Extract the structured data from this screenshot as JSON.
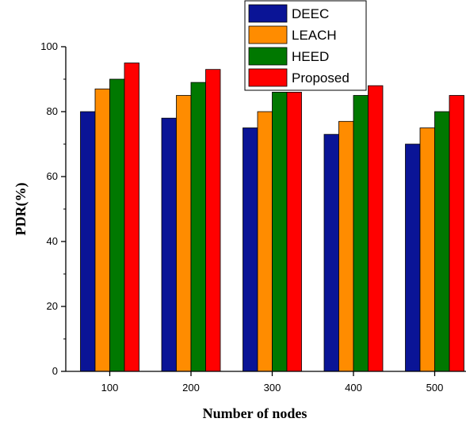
{
  "chart_data": {
    "type": "bar",
    "title": "",
    "xlabel": "Number of nodes",
    "ylabel": "PDR(%)",
    "categories": [
      "100",
      "200",
      "300",
      "400",
      "500"
    ],
    "ylim": [
      0,
      100
    ],
    "yticks": [
      "0",
      "20",
      "40",
      "60",
      "80",
      "100"
    ],
    "grid": false,
    "legend_position": "top-right",
    "series": [
      {
        "name": "DEEC",
        "color": "#0a1496",
        "values": [
          80,
          78,
          75,
          73,
          70
        ]
      },
      {
        "name": "LEACH",
        "color": "#ff8c00",
        "values": [
          87,
          85,
          80,
          77,
          75
        ]
      },
      {
        "name": "HEED",
        "color": "#007800",
        "values": [
          90,
          89,
          86,
          85,
          80
        ]
      },
      {
        "name": "Proposed",
        "color": "#ff0000",
        "values": [
          95,
          93,
          86,
          88,
          85
        ]
      }
    ]
  }
}
